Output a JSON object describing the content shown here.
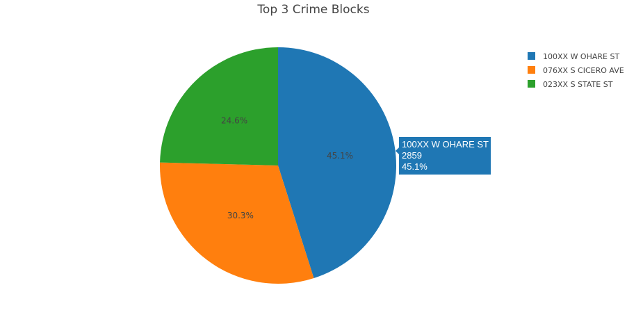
{
  "chart_data": {
    "type": "pie",
    "title": "Top 3 Crime Blocks",
    "labels": [
      "100XX W OHARE ST",
      "076XX S CICERO AVE",
      "023XX S STATE ST"
    ],
    "values": [
      2859,
      1921,
      1559
    ],
    "percent_labels": [
      "45.1%",
      "30.3%",
      "24.6%"
    ],
    "colors": [
      "#1f77b4",
      "#ff7f0e",
      "#2ca02c"
    ],
    "direction": "clockwise",
    "start": "top",
    "legend_position": "top-right",
    "hover": {
      "label": "100XX W OHARE ST",
      "value": "2859",
      "percent": "45.1%"
    }
  }
}
